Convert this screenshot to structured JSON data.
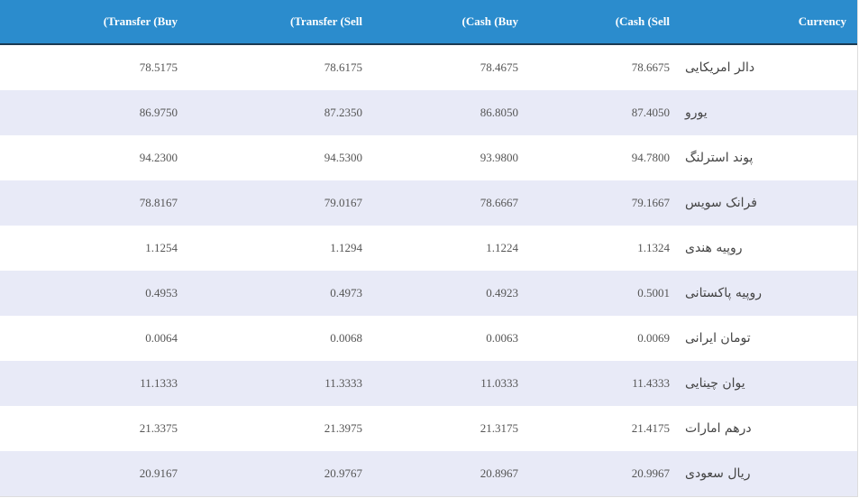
{
  "table": {
    "columns": [
      "(Transfer (Buy",
      "(Transfer (Sell",
      "(Cash (Buy",
      "(Cash (Sell",
      "Currency"
    ],
    "rows": [
      [
        "78.5175",
        "78.6175",
        "78.4675",
        "78.6675",
        "دالر امریکایی"
      ],
      [
        "86.9750",
        "87.2350",
        "86.8050",
        "87.4050",
        "یورو"
      ],
      [
        "94.2300",
        "94.5300",
        "93.9800",
        "94.7800",
        "پوند استرلنگ"
      ],
      [
        "78.8167",
        "79.0167",
        "78.6667",
        "79.1667",
        "فرانک سویس"
      ],
      [
        "1.1254",
        "1.1294",
        "1.1224",
        "1.1324",
        "روپیه هندی"
      ],
      [
        "0.4953",
        "0.4973",
        "0.4923",
        "0.5001",
        "روپیه پاکستانی"
      ],
      [
        "0.0064",
        "0.0068",
        "0.0063",
        "0.0069",
        "تومان ایرانی"
      ],
      [
        "11.1333",
        "11.3333",
        "11.0333",
        "11.4333",
        "یوان چینایی"
      ],
      [
        "21.3375",
        "21.3975",
        "21.3175",
        "21.4175",
        "درهم امارات"
      ],
      [
        "20.9167",
        "20.9767",
        "20.8967",
        "20.9967",
        "ریال سعودی"
      ]
    ]
  }
}
